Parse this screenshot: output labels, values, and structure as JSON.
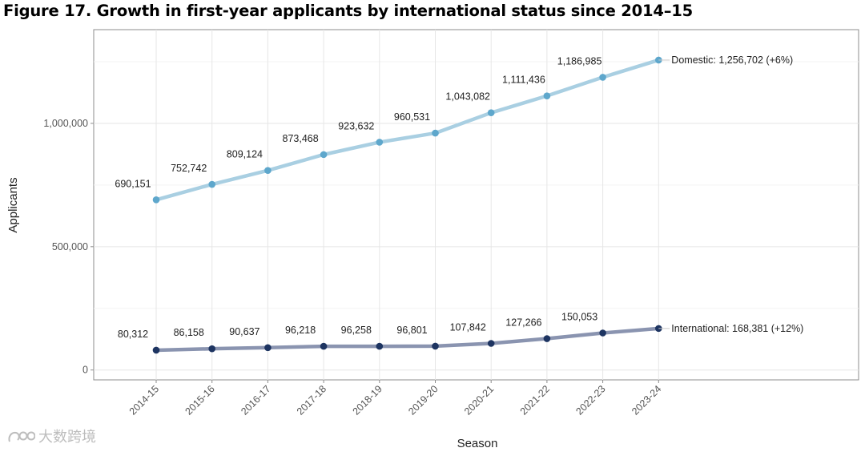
{
  "figure_title": "Figure 17. Growth in first-year applicants by international status since 2014–15",
  "watermark": {
    "text": "大数跨境",
    "icon": "logo-icon"
  },
  "chart_data": {
    "type": "line",
    "title": "Figure 17. Growth in first-year applicants by international status since 2014–15",
    "xlabel": "Season",
    "ylabel": "Applicants",
    "ylim": [
      -40000,
      1380000
    ],
    "grid": true,
    "legend": "none (series labeled at line ends, right)",
    "categories": [
      "2014-15",
      "2015-16",
      "2016-17",
      "2017-18",
      "2018-19",
      "2019-20",
      "2020-21",
      "2021-22",
      "2022-23",
      "2023-24"
    ],
    "y_ticks": [
      {
        "value": 0,
        "label": "0"
      },
      {
        "value": 500000,
        "label": "500,000"
      },
      {
        "value": 1000000,
        "label": "1,000,000"
      }
    ],
    "series": [
      {
        "name": "Domestic",
        "line_color": "#a9cfe2",
        "point_color": "#5ea7cc",
        "values": [
          690151,
          752742,
          809124,
          873468,
          923632,
          960531,
          1043082,
          1111436,
          1186985,
          1256702
        ],
        "value_labels": [
          "690,151",
          "752,742",
          "809,124",
          "873,468",
          "923,632",
          "960,531",
          "1,043,082",
          "1,111,436",
          "1,186,985"
        ],
        "end_label": "Domestic: 1,256,702 (+6%)"
      },
      {
        "name": "International",
        "line_color": "#8a94b0",
        "point_color": "#1d3461",
        "values": [
          80312,
          86158,
          90637,
          96218,
          96258,
          96801,
          107842,
          127266,
          150053,
          168381
        ],
        "value_labels": [
          "80,312",
          "86,158",
          "90,637",
          "96,218",
          "96,258",
          "96,801",
          "107,842",
          "127,266",
          "150,053"
        ],
        "end_label": "International: 168,381 (+12%)"
      }
    ]
  }
}
